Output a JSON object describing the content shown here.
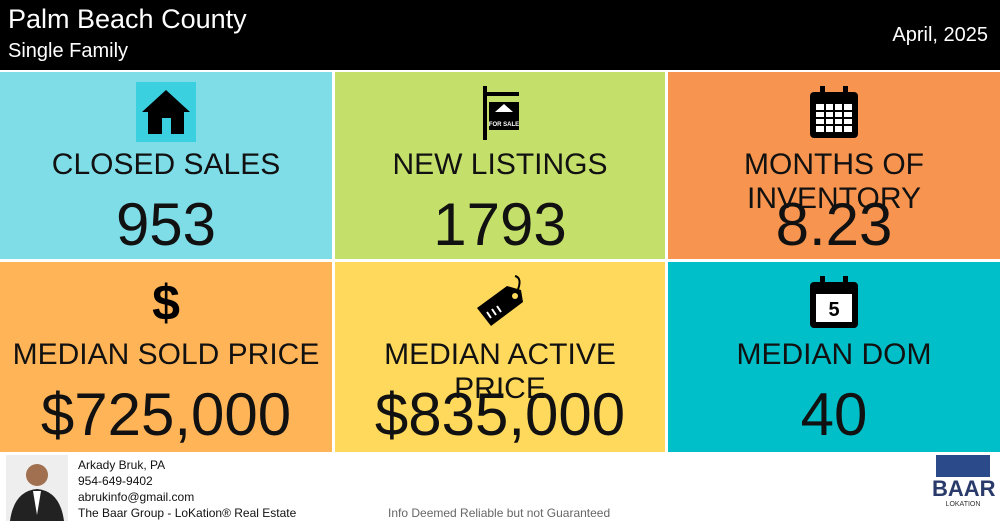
{
  "header": {
    "title": "Palm Beach County",
    "subtitle": "Single Family",
    "date": "April, 2025"
  },
  "tiles": [
    {
      "label": "CLOSED SALES",
      "value": "953"
    },
    {
      "label": "NEW LISTINGS",
      "value": "1793",
      "icon_text": "FOR SALE"
    },
    {
      "label": "MONTHS OF INVENTORY",
      "value": "8.23"
    },
    {
      "label": "MEDIAN SOLD PRICE",
      "value": "$725,000",
      "icon_text": "$"
    },
    {
      "label": "MEDIAN ACTIVE PRICE",
      "value": "$835,000"
    },
    {
      "label": "MEDIAN DOM",
      "value": "40",
      "icon_text": "5"
    }
  ],
  "footer": {
    "contact": [
      "Arkady Bruk, PA",
      "954-649-9402",
      "abrukinfo@gmail.com",
      "The Baar Group - LoKation® Real Estate"
    ],
    "disclaimer": "Info Deemed Reliable but not Guaranteed",
    "logo": {
      "name": "BAAR",
      "sub": "LOKATION"
    }
  }
}
